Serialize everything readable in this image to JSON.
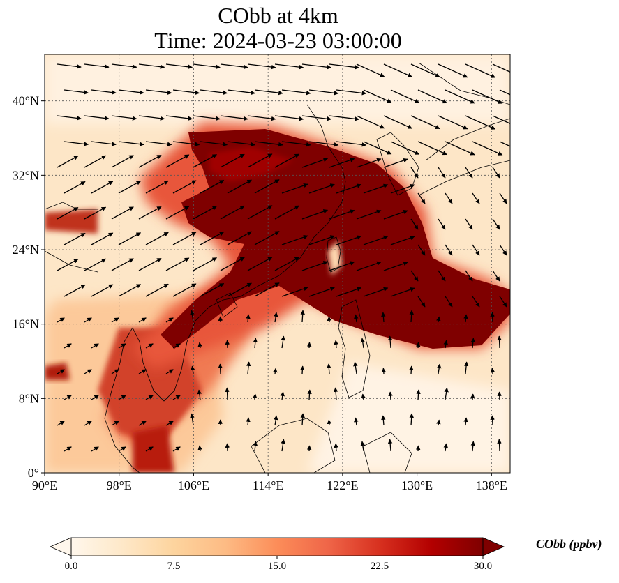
{
  "title": {
    "line1": "CObb at 4km",
    "line2": "Time: 2024-03-23 03:00:00"
  },
  "map": {
    "lon_range": [
      90,
      140
    ],
    "lat_range": [
      0,
      45
    ],
    "lon_ticks": [
      "90°E",
      "98°E",
      "106°E",
      "114°E",
      "122°E",
      "130°E",
      "138°E"
    ],
    "lat_ticks": [
      "0°",
      "8°N",
      "16°N",
      "24°N",
      "32°N",
      "40°N"
    ],
    "gridlines": true,
    "field": "CObb",
    "vectors": "wind"
  },
  "colorbar": {
    "label": "CObb (ppbv)",
    "ticks": [
      "0.0",
      "7.5",
      "15.0",
      "22.5",
      "30.0"
    ],
    "range": [
      0,
      30
    ],
    "colormap": "OrRd",
    "extend": "both",
    "colors": [
      "#fff7ec",
      "#fee8c8",
      "#fdd49e",
      "#fdbb84",
      "#fc8d59",
      "#ef6548",
      "#d7301f",
      "#b30000",
      "#7f0000"
    ]
  }
}
